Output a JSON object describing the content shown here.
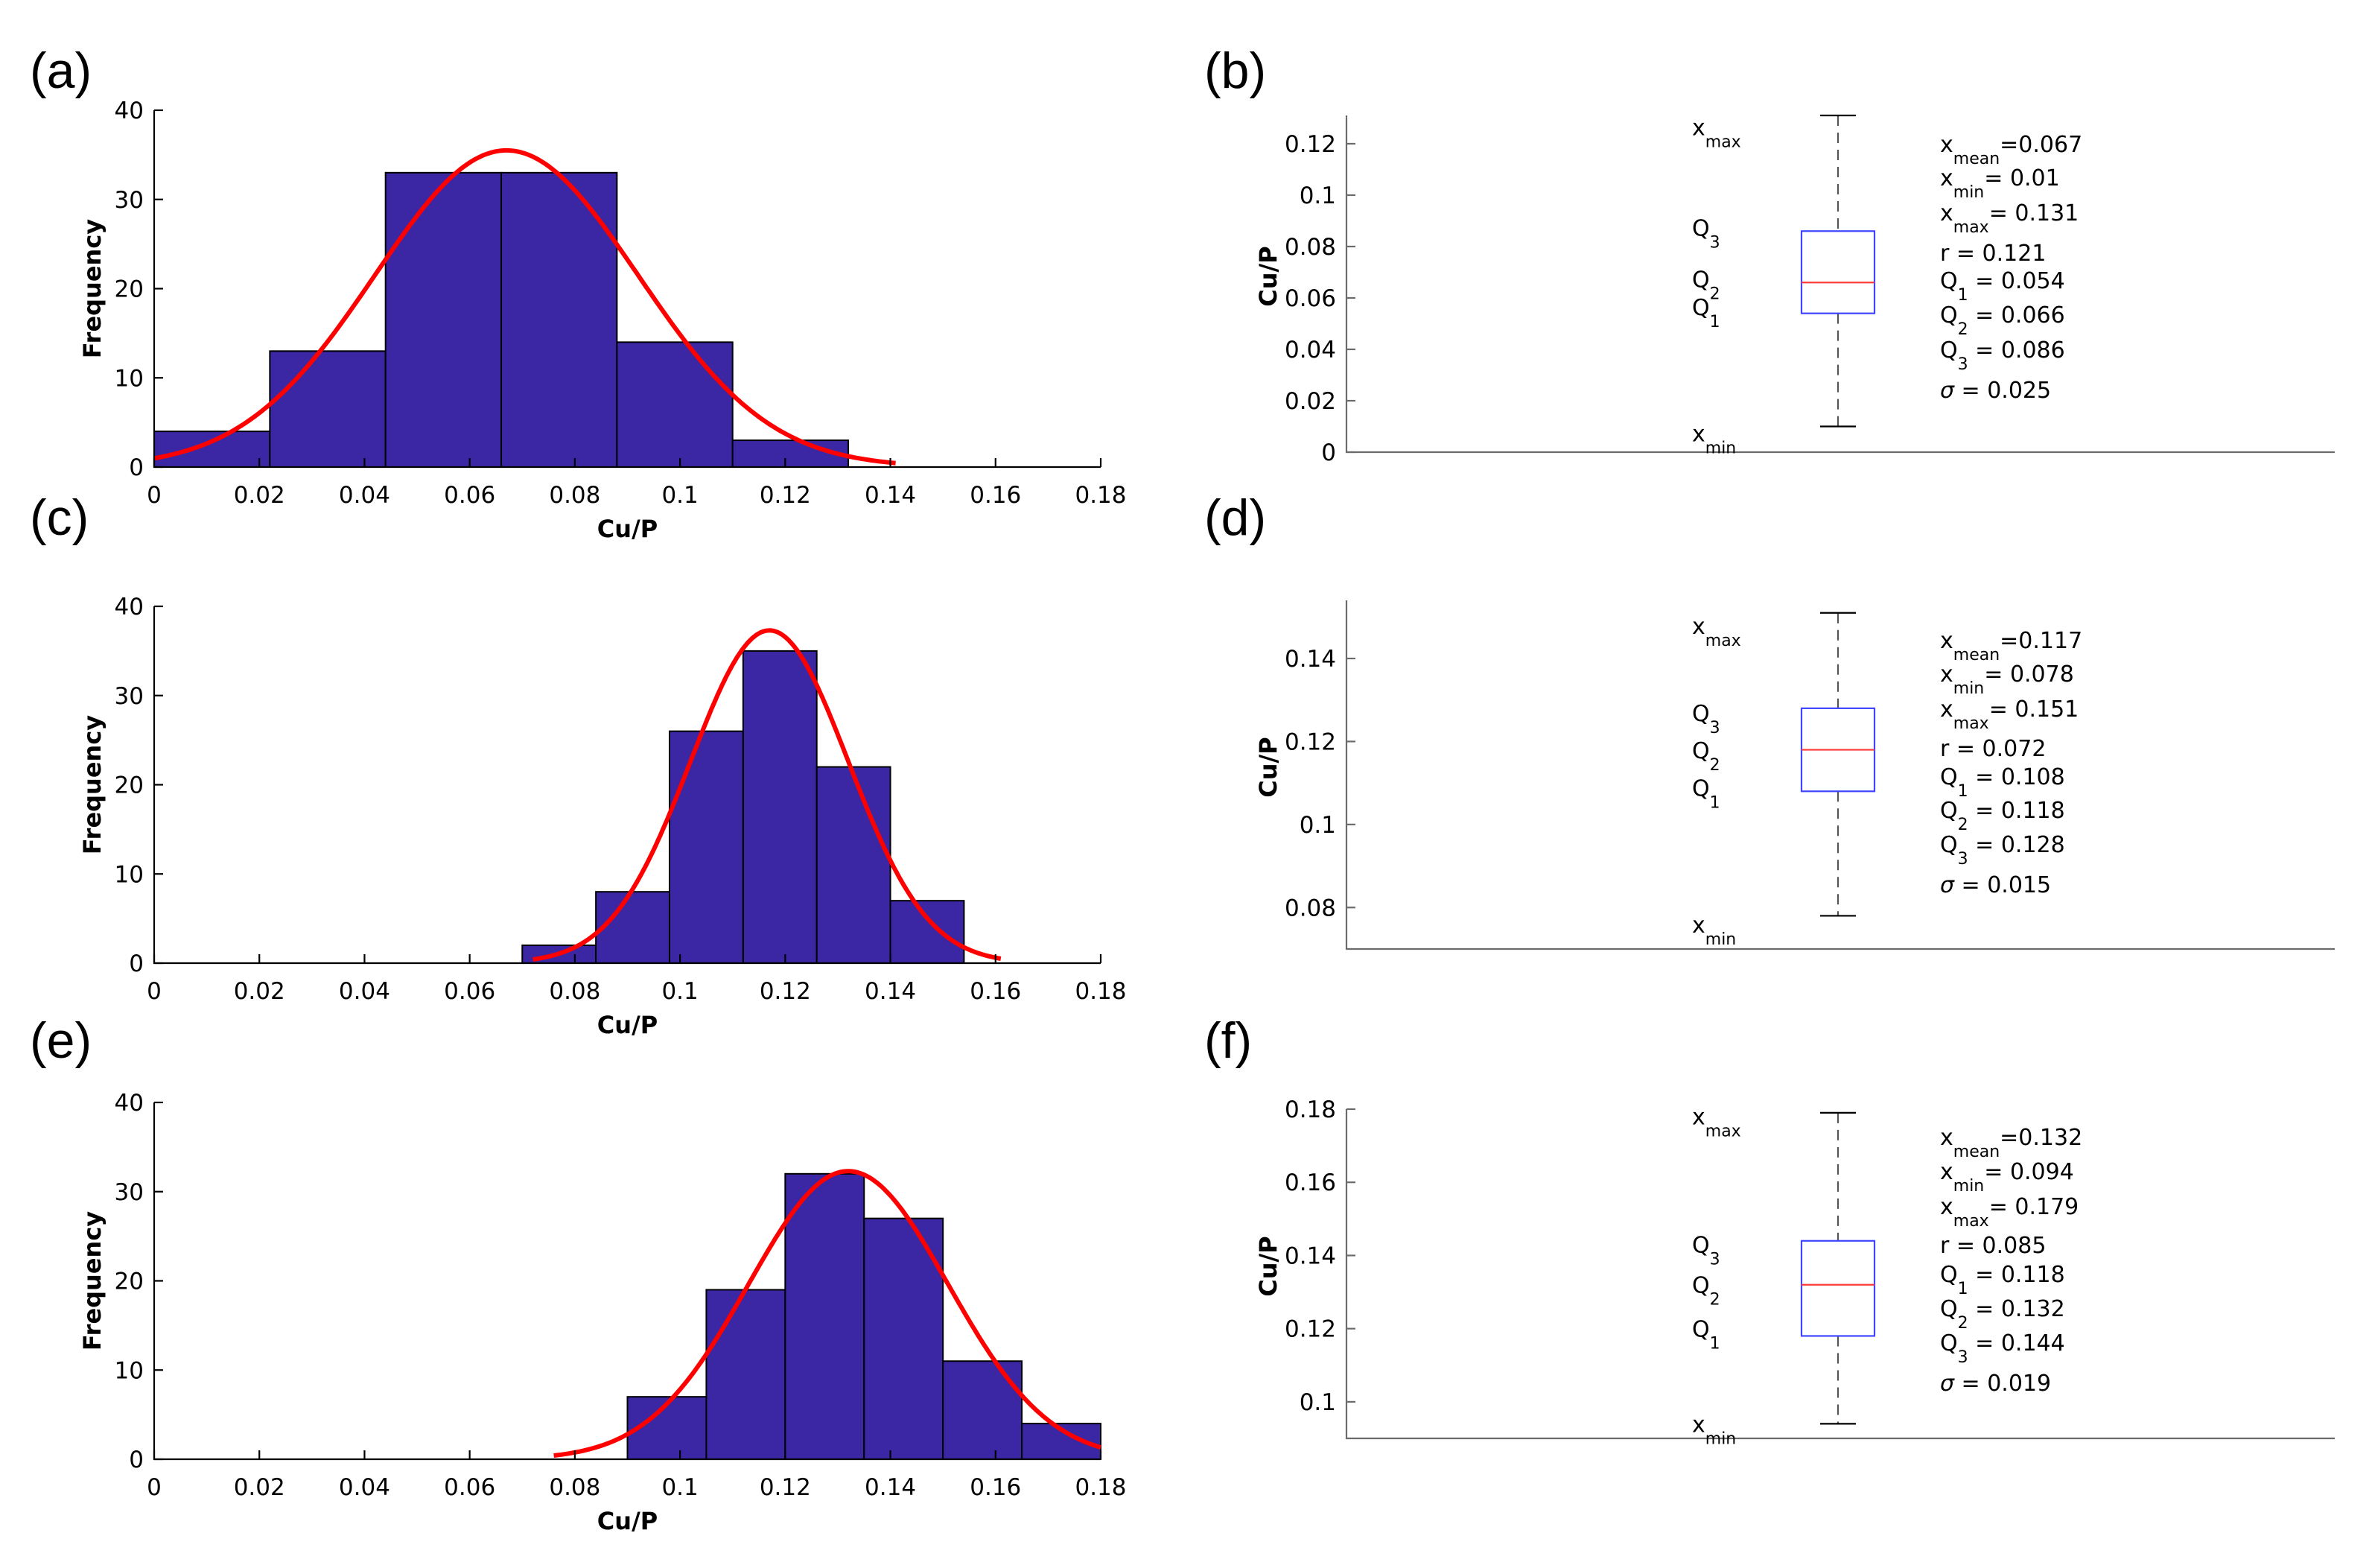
{
  "chart_data": [
    {
      "id": "a",
      "type": "bar",
      "panel_label": "(a)",
      "xlabel": "Cu/P",
      "ylabel": "Frequency",
      "xlim": [
        0,
        0.18
      ],
      "ylim": [
        0,
        40
      ],
      "xticks": [
        "0",
        "0.02",
        "0.04",
        "0.06",
        "0.08",
        "0.1",
        "0.12",
        "0.14",
        "0.16",
        "0.18"
      ],
      "yticks": [
        "0",
        "10",
        "20",
        "30",
        "40"
      ],
      "bins": [
        {
          "x0": 0.0,
          "x1": 0.022,
          "count": 4
        },
        {
          "x0": 0.022,
          "x1": 0.044,
          "count": 13
        },
        {
          "x0": 0.044,
          "x1": 0.066,
          "count": 33
        },
        {
          "x0": 0.066,
          "x1": 0.088,
          "count": 33
        },
        {
          "x0": 0.088,
          "x1": 0.11,
          "count": 14
        },
        {
          "x0": 0.11,
          "x1": 0.132,
          "count": 3
        }
      ],
      "fit": {
        "type": "normal",
        "mean": 0.067,
        "peak": 35.5,
        "sigma": 0.025,
        "x_start": 0.0,
        "x_end": 0.141
      }
    },
    {
      "id": "c",
      "type": "bar",
      "panel_label": "(c)",
      "xlabel": "Cu/P",
      "ylabel": "Frequency",
      "xlim": [
        0,
        0.18
      ],
      "ylim": [
        0,
        40
      ],
      "xticks": [
        "0",
        "0.02",
        "0.04",
        "0.06",
        "0.08",
        "0.1",
        "0.12",
        "0.14",
        "0.16",
        "0.18"
      ],
      "yticks": [
        "0",
        "10",
        "20",
        "30",
        "40"
      ],
      "bins": [
        {
          "x0": 0.07,
          "x1": 0.084,
          "count": 2
        },
        {
          "x0": 0.084,
          "x1": 0.098,
          "count": 8
        },
        {
          "x0": 0.098,
          "x1": 0.112,
          "count": 26
        },
        {
          "x0": 0.112,
          "x1": 0.126,
          "count": 35
        },
        {
          "x0": 0.126,
          "x1": 0.14,
          "count": 22
        },
        {
          "x0": 0.14,
          "x1": 0.154,
          "count": 7
        }
      ],
      "fit": {
        "type": "normal",
        "mean": 0.117,
        "peak": 37.3,
        "sigma": 0.015,
        "x_start": 0.072,
        "x_end": 0.161
      }
    },
    {
      "id": "e",
      "type": "bar",
      "panel_label": "(e)",
      "xlabel": "Cu/P",
      "ylabel": "Frequency",
      "xlim": [
        0,
        0.18
      ],
      "ylim": [
        0,
        40
      ],
      "xticks": [
        "0",
        "0.02",
        "0.04",
        "0.06",
        "0.08",
        "0.1",
        "0.12",
        "0.14",
        "0.16",
        "0.18"
      ],
      "yticks": [
        "0",
        "10",
        "20",
        "30",
        "40"
      ],
      "bins": [
        {
          "x0": 0.09,
          "x1": 0.105,
          "count": 7
        },
        {
          "x0": 0.105,
          "x1": 0.12,
          "count": 19
        },
        {
          "x0": 0.12,
          "x1": 0.135,
          "count": 32
        },
        {
          "x0": 0.135,
          "x1": 0.15,
          "count": 27
        },
        {
          "x0": 0.15,
          "x1": 0.165,
          "count": 11
        },
        {
          "x0": 0.165,
          "x1": 0.18,
          "count": 4
        }
      ],
      "fit": {
        "type": "normal",
        "mean": 0.132,
        "peak": 32.3,
        "sigma": 0.019,
        "x_start": 0.076,
        "x_end": 0.18
      }
    },
    {
      "id": "b",
      "type": "box",
      "panel_label": "(b)",
      "ylabel": "Cu/P",
      "ylim": [
        0,
        0.131
      ],
      "yticks": [
        "0",
        "0.02",
        "0.04",
        "0.06",
        "0.08",
        "0.1",
        "0.12"
      ],
      "box": {
        "min": 0.01,
        "q1": 0.054,
        "median": 0.066,
        "q3": 0.086,
        "max": 0.131
      },
      "side_labels": [
        {
          "base": "x",
          "sub": "max",
          "at": 0.125
        },
        {
          "base": "Q",
          "sub": "3",
          "at": 0.086
        },
        {
          "base": "Q",
          "sub": "2",
          "at": 0.066
        },
        {
          "base": "Q",
          "sub": "1",
          "at": 0.055
        },
        {
          "base": "x",
          "sub": "min",
          "at": 0.006
        }
      ],
      "stats": [
        {
          "base": "x",
          "sub": "mean",
          "text": "=0.067"
        },
        {
          "base": "x",
          "sub": "min",
          "text": "= 0.01"
        },
        {
          "base": "x",
          "sub": "max",
          "text": "= 0.131"
        },
        {
          "base": "r",
          "sub": "",
          "text": " = 0.121"
        },
        {
          "base": "Q",
          "sub": "1",
          "text": " = 0.054"
        },
        {
          "base": "Q",
          "sub": "2",
          "text": " = 0.066"
        },
        {
          "base": "Q",
          "sub": "3",
          "text": " = 0.086"
        },
        {
          "base": "σ",
          "sub": "",
          "text": " = 0.025"
        }
      ]
    },
    {
      "id": "d",
      "type": "box",
      "panel_label": "(d)",
      "ylabel": "Cu/P",
      "ylim": [
        0.07,
        0.154
      ],
      "yticks": [
        "0.08",
        "0.1",
        "0.12",
        "0.14"
      ],
      "box": {
        "min": 0.078,
        "q1": 0.108,
        "median": 0.118,
        "q3": 0.128,
        "max": 0.151
      },
      "side_labels": [
        {
          "base": "x",
          "sub": "max",
          "at": 0.147
        },
        {
          "base": "Q",
          "sub": "3",
          "at": 0.126
        },
        {
          "base": "Q",
          "sub": "2",
          "at": 0.117
        },
        {
          "base": "Q",
          "sub": "1",
          "at": 0.108
        },
        {
          "base": "x",
          "sub": "min",
          "at": 0.075
        }
      ],
      "stats": [
        {
          "base": "x",
          "sub": "mean",
          "text": "=0.117"
        },
        {
          "base": "x",
          "sub": "min",
          "text": "= 0.078"
        },
        {
          "base": "x",
          "sub": "max",
          "text": "= 0.151"
        },
        {
          "base": "r",
          "sub": "",
          "text": " = 0.072"
        },
        {
          "base": "Q",
          "sub": "1",
          "text": " = 0.108"
        },
        {
          "base": "Q",
          "sub": "2",
          "text": " = 0.118"
        },
        {
          "base": "Q",
          "sub": "3",
          "text": " = 0.128"
        },
        {
          "base": "σ",
          "sub": "",
          "text": " = 0.015"
        }
      ]
    },
    {
      "id": "f",
      "type": "box",
      "panel_label": "(f)",
      "ylabel": "Cu/P",
      "ylim": [
        0.09,
        0.18
      ],
      "yticks": [
        "0.1",
        "0.12",
        "0.14",
        "0.16",
        "0.18"
      ],
      "box": {
        "min": 0.094,
        "q1": 0.118,
        "median": 0.132,
        "q3": 0.144,
        "max": 0.179
      },
      "side_labels": [
        {
          "base": "x",
          "sub": "max",
          "at": 0.177
        },
        {
          "base": "Q",
          "sub": "3",
          "at": 0.142
        },
        {
          "base": "Q",
          "sub": "2",
          "at": 0.131
        },
        {
          "base": "Q",
          "sub": "1",
          "at": 0.119
        },
        {
          "base": "x",
          "sub": "min",
          "at": 0.093
        }
      ],
      "stats": [
        {
          "base": "x",
          "sub": "mean",
          "text": "=0.132"
        },
        {
          "base": "x",
          "sub": "min",
          "text": "= 0.094"
        },
        {
          "base": "x",
          "sub": "max",
          "text": "= 0.179"
        },
        {
          "base": "r",
          "sub": "",
          "text": " = 0.085"
        },
        {
          "base": "Q",
          "sub": "1",
          "text": " = 0.118"
        },
        {
          "base": "Q",
          "sub": "2",
          "text": " = 0.132"
        },
        {
          "base": "Q",
          "sub": "3",
          "text": " = 0.144"
        },
        {
          "base": "σ",
          "sub": "",
          "text": " = 0.019"
        }
      ]
    }
  ]
}
